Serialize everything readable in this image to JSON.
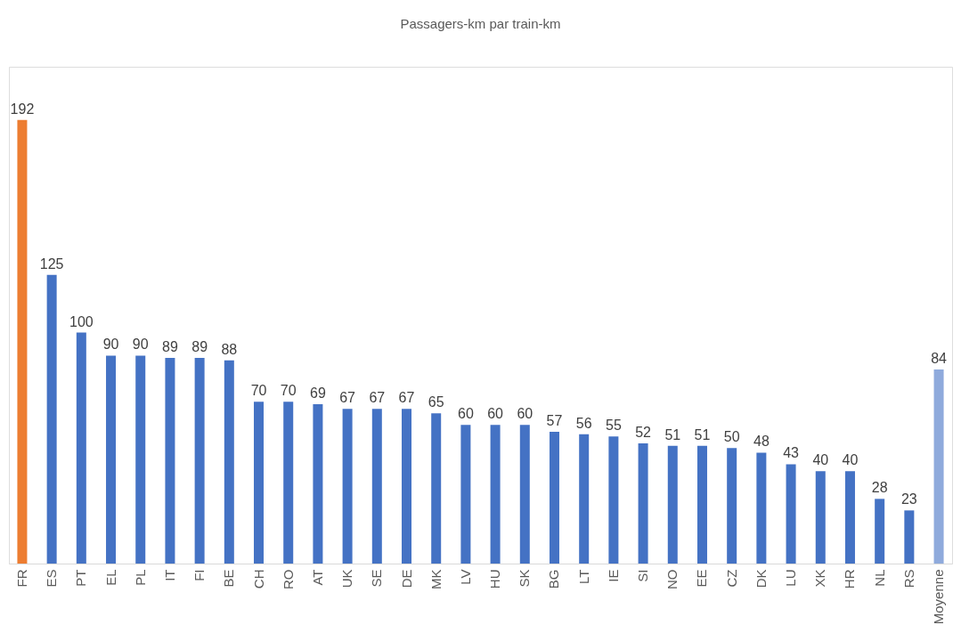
{
  "chart_data": {
    "type": "bar",
    "title": "Passagers-km par train-km",
    "categories": [
      "FR",
      "ES",
      "PT",
      "EL",
      "PL",
      "IT",
      "FI",
      "BE",
      "CH",
      "RO",
      "AT",
      "UK",
      "SE",
      "DE",
      "MK",
      "LV",
      "HU",
      "SK",
      "BG",
      "LT",
      "IE",
      "SI",
      "NO",
      "EE",
      "CZ",
      "DK",
      "LU",
      "XK",
      "HR",
      "NL",
      "RS",
      "Moyenne"
    ],
    "values": [
      192,
      125,
      100,
      90,
      90,
      89,
      89,
      88,
      70,
      70,
      69,
      67,
      67,
      67,
      65,
      60,
      60,
      60,
      57,
      56,
      55,
      52,
      51,
      51,
      50,
      48,
      43,
      40,
      40,
      28,
      23,
      84
    ],
    "colors": [
      "#ed7d31",
      "#4472c4",
      "#4472c4",
      "#4472c4",
      "#4472c4",
      "#4472c4",
      "#4472c4",
      "#4472c4",
      "#4472c4",
      "#4472c4",
      "#4472c4",
      "#4472c4",
      "#4472c4",
      "#4472c4",
      "#4472c4",
      "#4472c4",
      "#4472c4",
      "#4472c4",
      "#4472c4",
      "#4472c4",
      "#4472c4",
      "#4472c4",
      "#4472c4",
      "#4472c4",
      "#4472c4",
      "#4472c4",
      "#4472c4",
      "#4472c4",
      "#4472c4",
      "#4472c4",
      "#4472c4",
      "#8faadc"
    ],
    "data_labels": true
  }
}
